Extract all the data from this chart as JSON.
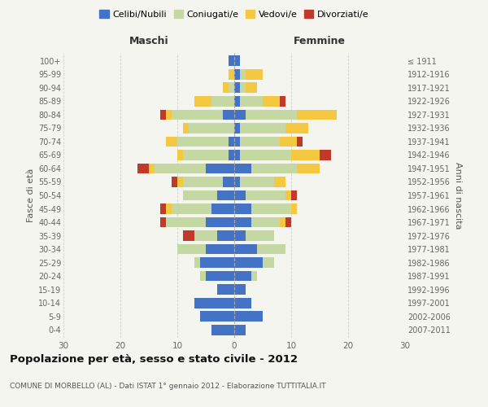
{
  "age_groups": [
    "0-4",
    "5-9",
    "10-14",
    "15-19",
    "20-24",
    "25-29",
    "30-34",
    "35-39",
    "40-44",
    "45-49",
    "50-54",
    "55-59",
    "60-64",
    "65-69",
    "70-74",
    "75-79",
    "80-84",
    "85-89",
    "90-94",
    "95-99",
    "100+"
  ],
  "birth_years": [
    "2007-2011",
    "2002-2006",
    "1997-2001",
    "1992-1996",
    "1987-1991",
    "1982-1986",
    "1977-1981",
    "1972-1976",
    "1967-1971",
    "1962-1966",
    "1957-1961",
    "1952-1956",
    "1947-1951",
    "1942-1946",
    "1937-1941",
    "1932-1936",
    "1927-1931",
    "1922-1926",
    "1917-1921",
    "1912-1916",
    "≤ 1911"
  ],
  "male_celibi": [
    4,
    6,
    7,
    3,
    5,
    6,
    5,
    3,
    5,
    4,
    3,
    2,
    5,
    1,
    1,
    0,
    2,
    0,
    0,
    0,
    1
  ],
  "male_coniugati": [
    0,
    0,
    0,
    0,
    1,
    1,
    5,
    4,
    7,
    7,
    6,
    7,
    9,
    8,
    9,
    8,
    9,
    4,
    1,
    0,
    0
  ],
  "male_vedovi": [
    0,
    0,
    0,
    0,
    0,
    0,
    0,
    0,
    0,
    1,
    0,
    1,
    1,
    1,
    2,
    1,
    1,
    3,
    1,
    1,
    0
  ],
  "male_divorziati": [
    0,
    0,
    0,
    0,
    0,
    0,
    0,
    2,
    1,
    1,
    0,
    1,
    2,
    0,
    0,
    0,
    1,
    0,
    0,
    0,
    0
  ],
  "female_celibi": [
    2,
    5,
    3,
    2,
    3,
    5,
    4,
    2,
    3,
    3,
    2,
    1,
    3,
    1,
    1,
    1,
    2,
    1,
    1,
    1,
    1
  ],
  "female_coniugati": [
    0,
    0,
    0,
    0,
    1,
    2,
    5,
    5,
    5,
    7,
    7,
    6,
    8,
    9,
    7,
    8,
    9,
    4,
    1,
    1,
    0
  ],
  "female_vedovi": [
    0,
    0,
    0,
    0,
    0,
    0,
    0,
    0,
    1,
    1,
    1,
    2,
    4,
    5,
    3,
    4,
    7,
    3,
    2,
    3,
    0
  ],
  "female_divorziati": [
    0,
    0,
    0,
    0,
    0,
    0,
    0,
    0,
    1,
    0,
    1,
    0,
    0,
    2,
    1,
    0,
    0,
    1,
    0,
    0,
    0
  ],
  "colors": {
    "celibi": "#4472c4",
    "coniugati": "#c5d8a4",
    "vedovi": "#f5c842",
    "divorziati": "#c0392b"
  },
  "legend_labels": [
    "Celibi/Nubili",
    "Coniugati/e",
    "Vedovi/e",
    "Divorziati/e"
  ],
  "title": "Popolazione per età, sesso e stato civile - 2012",
  "subtitle": "COMUNE DI MORBELLO (AL) - Dati ISTAT 1° gennaio 2012 - Elaborazione TUTTITALIA.IT",
  "ylabel_left": "Fasce di età",
  "ylabel_right": "Anni di nascita",
  "xlabel_male": "Maschi",
  "xlabel_female": "Femmine",
  "xlim": 30,
  "background_color": "#f5f5f0",
  "grid_color": "#cccccc"
}
